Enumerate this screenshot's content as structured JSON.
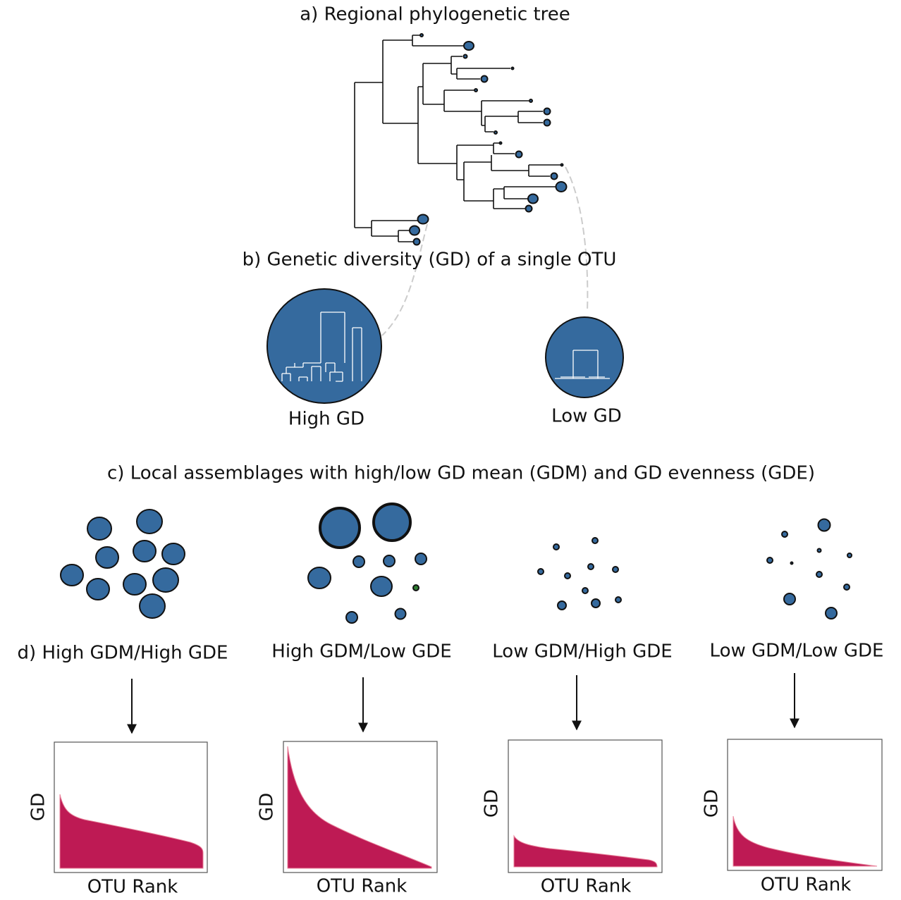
{
  "panel_a": {
    "title": "a) Regional phylogenetic tree"
  },
  "panel_b": {
    "title": "b) Genetic diversity (GD) of a single OTU",
    "otus": [
      {
        "label": "High GD"
      },
      {
        "label": "Low GD"
      }
    ]
  },
  "panel_c": {
    "title": "c) Local assemblages with high/low GD mean (GDM) and GD evenness (GDE)"
  },
  "panel_d": {
    "assemblages": [
      {
        "label": "d) High GDM/High GDE",
        "y_label": "GD",
        "x_label": "OTU Rank"
      },
      {
        "label": "High GDM/Low GDE",
        "y_label": "GD",
        "x_label": "OTU Rank"
      },
      {
        "label": "Low GDM/High GDE",
        "y_label": "GD",
        "x_label": "OTU Rank"
      },
      {
        "label": "Low GDM/Low GDE",
        "y_label": "GD",
        "x_label": "OTU Rank"
      }
    ]
  }
}
